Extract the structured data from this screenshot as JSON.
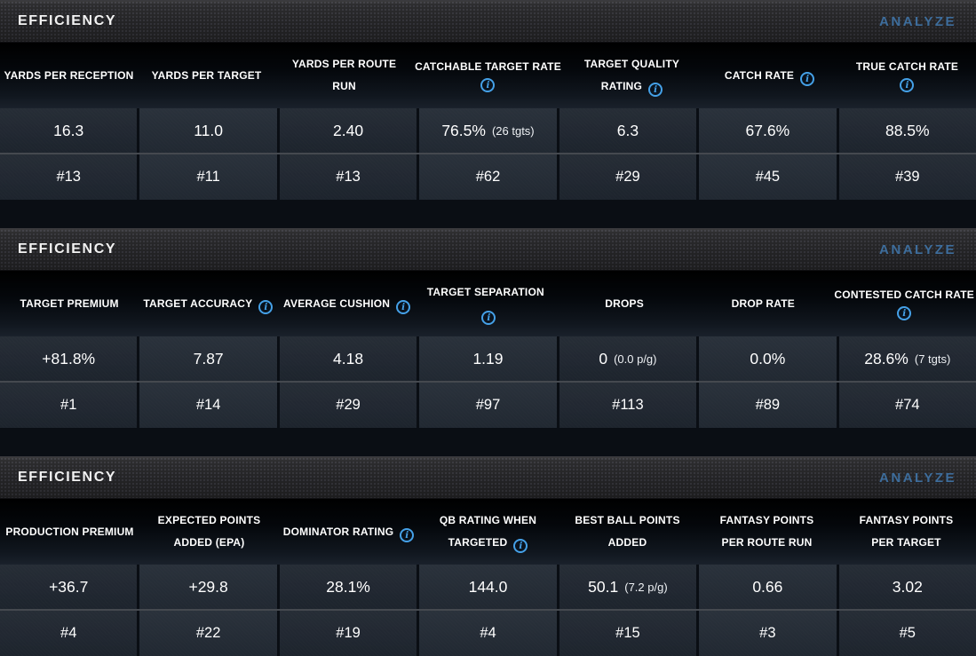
{
  "colors": {
    "info_icon_blue": "#45a1e8",
    "analyze_link_blue": "#3d6d9c",
    "cell_background": "#1f2630",
    "page_background": "#0a0e14"
  },
  "sections": [
    {
      "title": "EFFICIENCY",
      "action_label": "ANALYZE",
      "columns": [
        {
          "label": "YARDS PER RECEPTION",
          "icon": "none",
          "value": "16.3",
          "note": "",
          "rank": "#13"
        },
        {
          "label": "YARDS PER TARGET",
          "icon": "none",
          "value": "11.0",
          "note": "",
          "rank": "#11"
        },
        {
          "label": "YARDS PER ROUTE\nRUN",
          "icon": "none",
          "value": "2.40",
          "note": "",
          "rank": "#13"
        },
        {
          "label": "CATCHABLE TARGET RATE",
          "icon": "below",
          "value": "76.5%",
          "note": "(26 tgts)",
          "rank": "#62"
        },
        {
          "label": "TARGET QUALITY\nRATING",
          "icon": "inline",
          "value": "6.3",
          "note": "",
          "rank": "#29"
        },
        {
          "label": "CATCH RATE",
          "icon": "inline",
          "value": "67.6%",
          "note": "",
          "rank": "#45"
        },
        {
          "label": "TRUE CATCH RATE",
          "icon": "below",
          "value": "88.5%",
          "note": "",
          "rank": "#39"
        }
      ]
    },
    {
      "title": "EFFICIENCY",
      "action_label": "ANALYZE",
      "columns": [
        {
          "label": "TARGET PREMIUM",
          "icon": "none",
          "value": "+81.8%",
          "note": "",
          "rank": "#1"
        },
        {
          "label": "TARGET ACCURACY",
          "icon": "inline",
          "value": "7.87",
          "note": "",
          "rank": "#14"
        },
        {
          "label": "AVERAGE CUSHION",
          "icon": "inline",
          "value": "4.18",
          "note": "",
          "rank": "#29"
        },
        {
          "label": "TARGET SEPARATION",
          "icon": "inline",
          "value": "1.19",
          "note": "",
          "rank": "#97"
        },
        {
          "label": "DROPS",
          "icon": "none",
          "value": "0",
          "note": "(0.0 p/g)",
          "rank": "#113"
        },
        {
          "label": "DROP RATE",
          "icon": "none",
          "value": "0.0%",
          "note": "",
          "rank": "#89"
        },
        {
          "label": "CONTESTED CATCH RATE",
          "icon": "below",
          "value": "28.6%",
          "note": "(7 tgts)",
          "rank": "#74"
        }
      ]
    },
    {
      "title": "EFFICIENCY",
      "action_label": "ANALYZE",
      "columns": [
        {
          "label": "PRODUCTION PREMIUM",
          "icon": "none",
          "value": "+36.7",
          "note": "",
          "rank": "#4"
        },
        {
          "label": "EXPECTED POINTS\nADDED (EPA)",
          "icon": "none",
          "value": "+29.8",
          "note": "",
          "rank": "#22"
        },
        {
          "label": "DOMINATOR RATING",
          "icon": "inline",
          "value": "28.1%",
          "note": "",
          "rank": "#19"
        },
        {
          "label": "QB RATING WHEN\nTARGETED",
          "icon": "inline",
          "value": "144.0",
          "note": "",
          "rank": "#4"
        },
        {
          "label": "BEST BALL POINTS\nADDED",
          "icon": "none",
          "value": "50.1",
          "note": "(7.2 p/g)",
          "rank": "#15"
        },
        {
          "label": "FANTASY POINTS\nPER ROUTE RUN",
          "icon": "none",
          "value": "0.66",
          "note": "",
          "rank": "#3"
        },
        {
          "label": "FANTASY POINTS\nPER TARGET",
          "icon": "none",
          "value": "3.02",
          "note": "",
          "rank": "#5"
        }
      ]
    }
  ]
}
